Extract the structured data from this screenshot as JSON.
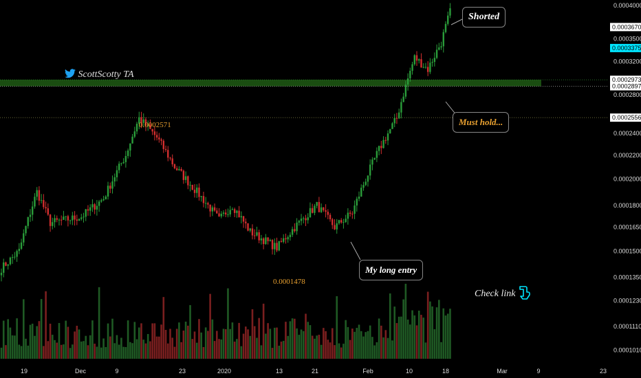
{
  "brand": {
    "text": "ScottScotty TA",
    "icon": "twitter-bird-icon",
    "color": "#1da1f2"
  },
  "annotations": {
    "shorted": "Shorted",
    "must_hold": "Must hold...",
    "long_entry": "My long entry",
    "check_link": "Check link",
    "check_link_icon": "pointing-hand-icon",
    "high_label": "0.0002571",
    "low_label": "0.0001478"
  },
  "colors": {
    "up": "#2a9d3a",
    "down": "#d32f2f",
    "zone": "#1e5a14",
    "accent": "#00e5ff",
    "orange": "#e8a030"
  },
  "chart_data": {
    "type": "candlestick",
    "y_scale": "log",
    "ylim": [
      0.0001,
      0.0004
    ],
    "y_ticks": [
      "0.0004000",
      "0.0003500",
      "0.0003200",
      "0.0002800",
      "0.0002400",
      "0.0002200",
      "0.0002000",
      "0.0001800",
      "0.0001650",
      "0.0001500",
      "0.0001350",
      "0.0001230",
      "0.0001110",
      "0.0001010"
    ],
    "x_ticks": [
      "19",
      "Dec",
      "9",
      "23",
      "2020",
      "13",
      "21",
      "Feb",
      "10",
      "18",
      "Mar",
      "9",
      "23"
    ],
    "price_tags": [
      {
        "label": "0.0003670",
        "style": "white"
      },
      {
        "label": "0.0003375",
        "style": "cyan"
      },
      {
        "label": "0.0002973",
        "style": "white"
      },
      {
        "label": "0.0002897",
        "style": "white"
      },
      {
        "label": "0.0002556",
        "style": "white"
      }
    ],
    "support_zone": [
      0.0002897,
      0.0002973
    ],
    "resistance_line": 0.0002556,
    "keypoints": [
      [
        0,
        0.00014
      ],
      [
        8,
        0.00015
      ],
      [
        16,
        0.00019
      ],
      [
        22,
        0.000168
      ],
      [
        36,
        0.000172
      ],
      [
        46,
        0.000185
      ],
      [
        56,
        0.00022
      ],
      [
        62,
        0.000255
      ],
      [
        70,
        0.000236
      ],
      [
        78,
        0.00021
      ],
      [
        88,
        0.00019
      ],
      [
        98,
        0.00017
      ],
      [
        104,
        0.00018
      ],
      [
        112,
        0.000162
      ],
      [
        124,
        0.000152
      ],
      [
        132,
        0.000165
      ],
      [
        142,
        0.00018
      ],
      [
        150,
        0.000165
      ],
      [
        158,
        0.000175
      ],
      [
        170,
        0.000225
      ],
      [
        178,
        0.000255
      ],
      [
        186,
        0.000325
      ],
      [
        192,
        0.00031
      ],
      [
        198,
        0.000345
      ],
      [
        202,
        0.00039
      ]
    ]
  }
}
